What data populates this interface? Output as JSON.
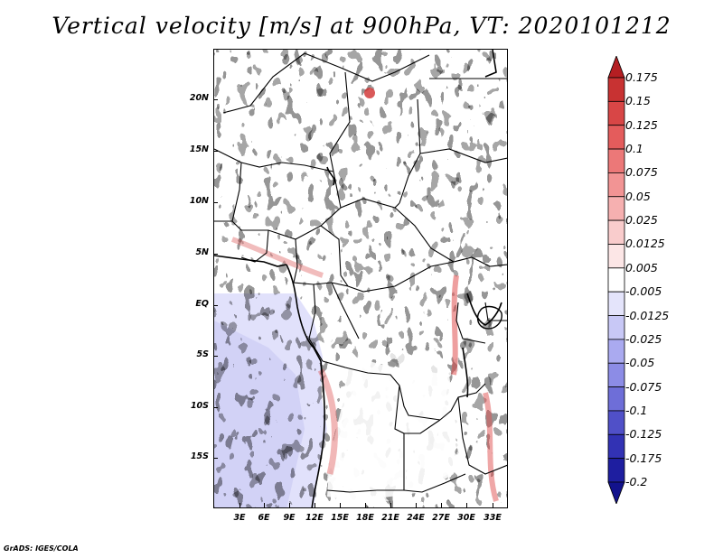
{
  "title": "Vertical velocity [m/s] at 900hPa, VT: 2020101212",
  "map": {
    "region": "Central Africa",
    "variable": "Vertical velocity",
    "units": "m/s",
    "level": "900hPa",
    "valid_time": "2020101212",
    "lat_labels": [
      "20N",
      "15N",
      "10N",
      "5N",
      "EQ",
      "5S",
      "10S",
      "15S"
    ],
    "lon_labels": [
      "3E",
      "6E",
      "9E",
      "12E",
      "15E",
      "18E",
      "21E",
      "24E",
      "27E",
      "30E",
      "33E"
    ]
  },
  "colorbar": {
    "labels": [
      "0.175",
      "0.15",
      "0.125",
      "0.1",
      "0.075",
      "0.05",
      "0.025",
      "0.0125",
      "0.005",
      "-0.005",
      "-0.0125",
      "-0.025",
      "-0.05",
      "-0.075",
      "-0.1",
      "-0.125",
      "-0.175",
      "-0.2"
    ],
    "colors": [
      "#b41e22",
      "#c83232",
      "#d84646",
      "#e45c5c",
      "#ec7878",
      "#f29494",
      "#f6b0b0",
      "#f9cccc",
      "#fce6e6",
      "#ffffff",
      "#e4e4fb",
      "#c8c8f6",
      "#aaaaf0",
      "#8c8ce6",
      "#6e6ed8",
      "#5050c8",
      "#3232b4",
      "#1e1ea0",
      "#12128c"
    ]
  },
  "credit": "GrADS: IGES/COLA"
}
